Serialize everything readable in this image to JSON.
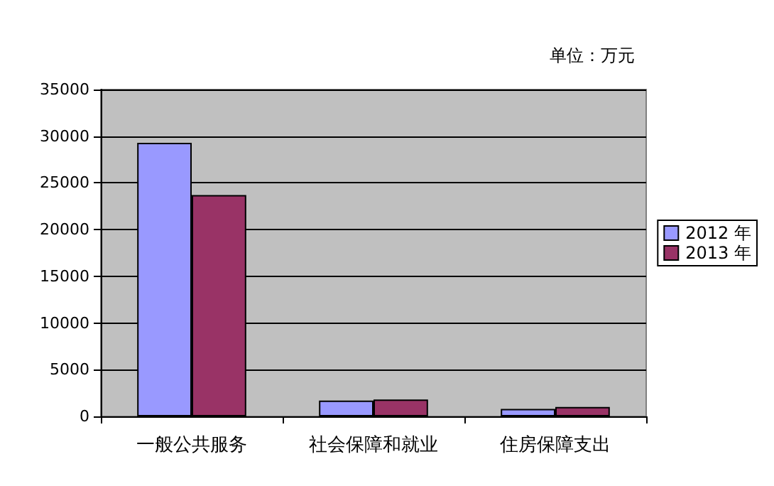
{
  "chart_data": {
    "type": "bar",
    "subtitle": "单位：万元",
    "categories": [
      "一般公共服务",
      "社会保障和就业",
      "住房保障支出"
    ],
    "series": [
      {
        "name": "2012 年",
        "color": "#9999ff",
        "values": [
          29300,
          1700,
          800
        ]
      },
      {
        "name": "2013 年",
        "color": "#993366",
        "values": [
          23700,
          1800,
          1000
        ]
      }
    ],
    "ylim": [
      0,
      35000
    ],
    "yticks": [
      0,
      5000,
      10000,
      15000,
      20000,
      25000,
      30000,
      35000
    ],
    "grid": "y",
    "legend": "right"
  }
}
